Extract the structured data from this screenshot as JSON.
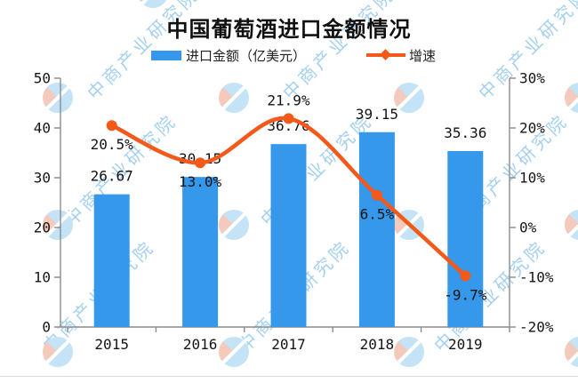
{
  "watermark": {
    "text": "中商产业研究院"
  },
  "chart_data": {
    "type": "bar",
    "title": "中国葡萄酒进口金额情况",
    "categories": [
      "2015",
      "2016",
      "2017",
      "2018",
      "2019"
    ],
    "series": [
      {
        "name": "进口金额（亿美元）",
        "type": "bar",
        "axis": "left",
        "color": "#3598ea",
        "values": [
          26.67,
          30.15,
          36.76,
          39.15,
          35.36
        ],
        "labels": [
          "26.67",
          "30.15",
          "36.76",
          "39.15",
          "35.36"
        ]
      },
      {
        "name": "增速",
        "type": "line",
        "axis": "right",
        "color": "#f4591a",
        "values": [
          20.5,
          13.0,
          21.9,
          6.5,
          -9.7
        ],
        "labels": [
          "20.5%",
          "13.0%",
          "21.9%",
          "6.5%",
          "-9.7%"
        ]
      }
    ],
    "left_axis": {
      "min": 0,
      "max": 50,
      "ticks": [
        50,
        40,
        30,
        20,
        10,
        0
      ]
    },
    "right_axis": {
      "min": -20,
      "max": 30,
      "ticks": [
        30,
        20,
        10,
        0,
        -10,
        -20
      ],
      "tick_labels": [
        "30%",
        "20%",
        "10%",
        "0%",
        "-10%",
        "-20%"
      ]
    },
    "grid": false,
    "legend_position": "top",
    "colors": {
      "bar": "#3598ea",
      "line": "#f4591a",
      "axis": "#8c8c8c",
      "label": "#141414"
    }
  }
}
